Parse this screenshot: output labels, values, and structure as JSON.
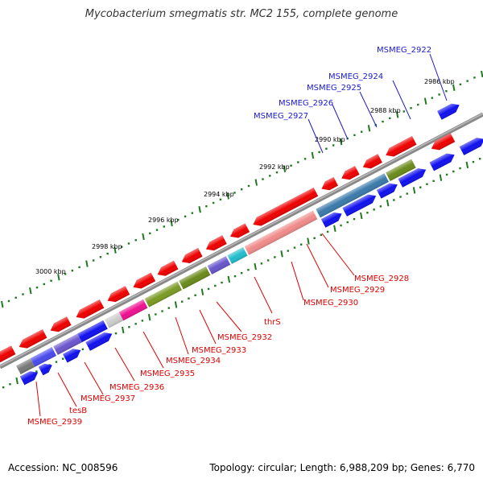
{
  "title": "Mycobacterium smegmatis str. MC2 155, complete genome",
  "footer": {
    "accession": "Accession: NC_008596",
    "stats": "Topology: circular; Length: 6,988,209 bp; Genes: 6,770"
  },
  "colors": {
    "label_forward": "#1a1acc",
    "label_reverse": "#dd0000",
    "tick": "#1f7a1f",
    "backbone": "#888888",
    "forward_cds": "#1010ee",
    "reverse_cds": "#ee0000"
  },
  "ruler": [
    {
      "label": "2986 kbp"
    },
    {
      "label": "2988 kbp"
    },
    {
      "label": "2990 kbp"
    },
    {
      "label": "2992 kbp"
    },
    {
      "label": "2994 kbp"
    },
    {
      "label": "2996 kbp"
    },
    {
      "label": "2998 kbp"
    },
    {
      "label": "3000 kbp"
    }
  ],
  "forward_labels": [
    {
      "name": "MSMEG_2922"
    },
    {
      "name": "MSMEG_2924"
    },
    {
      "name": "MSMEG_2925"
    },
    {
      "name": "MSMEG_2926"
    },
    {
      "name": "MSMEG_2927"
    }
  ],
  "reverse_labels": [
    {
      "name": "MSMEG_2928"
    },
    {
      "name": "MSMEG_2929"
    },
    {
      "name": "MSMEG_2930"
    },
    {
      "name": "thrS"
    },
    {
      "name": "MSMEG_2932"
    },
    {
      "name": "MSMEG_2933"
    },
    {
      "name": "MSMEG_2934"
    },
    {
      "name": "MSMEG_2935"
    },
    {
      "name": "MSMEG_2936"
    },
    {
      "name": "MSMEG_2937"
    },
    {
      "name": "tesB"
    },
    {
      "name": "MSMEG_2939"
    }
  ]
}
